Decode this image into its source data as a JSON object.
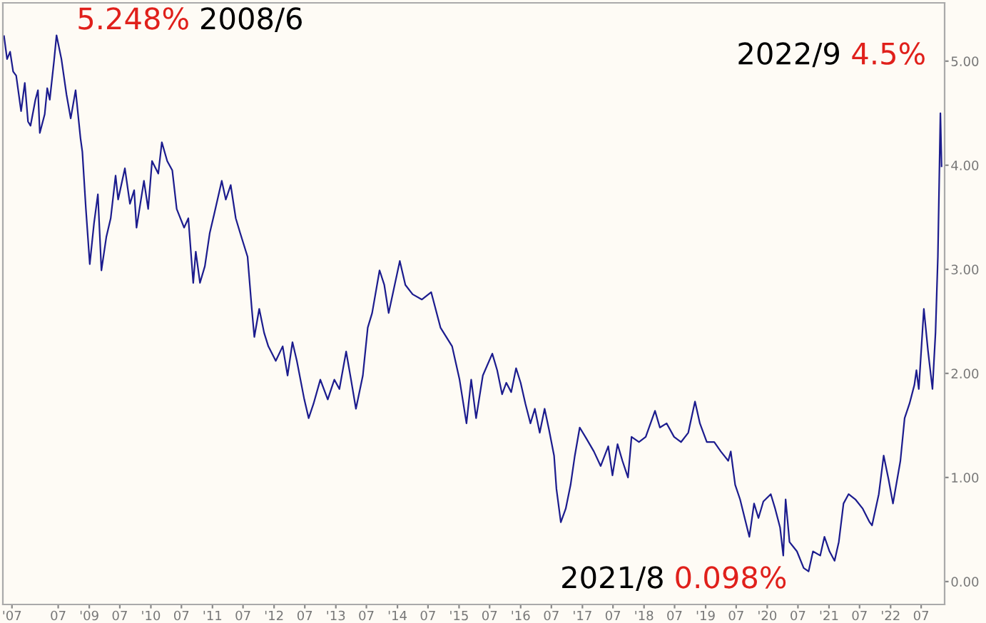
{
  "chart_data": {
    "type": "line",
    "x": [
      "2007-08-15",
      "2007-09-02",
      "2007-09-20",
      "2007-10-08",
      "2007-10-26",
      "2007-11-24",
      "2007-12-16",
      "2008-01-04",
      "2008-01-19",
      "2008-02-17",
      "2008-03-03",
      "2008-03-14",
      "2008-04-12",
      "2008-04-27",
      "2008-05-12",
      "2008-06-06",
      "2008-06-21",
      "2008-07-20",
      "2008-08-19",
      "2008-09-13",
      "2008-10-12",
      "2008-11-10",
      "2008-11-21",
      "2008-12-12",
      "2009-01-04",
      "2009-01-29",
      "2009-02-21",
      "2009-03-14",
      "2009-04-12",
      "2009-05-08",
      "2009-06-06",
      "2009-06-21",
      "2009-07-31",
      "2009-08-30",
      "2009-09-24",
      "2009-10-08",
      "2009-11-21",
      "2009-12-16",
      "2010-01-08",
      "2010-02-14",
      "2010-03-07",
      "2010-04-08",
      "2010-05-08",
      "2010-06-03",
      "2010-07-17",
      "2010-08-11",
      "2010-09-09",
      "2010-09-24",
      "2010-10-19",
      "2010-11-17",
      "2010-12-16",
      "2011-01-11",
      "2011-02-25",
      "2011-03-21",
      "2011-04-19",
      "2011-05-19",
      "2011-06-14",
      "2011-07-28",
      "2011-08-22",
      "2011-09-06",
      "2011-10-05",
      "2011-11-03",
      "2011-11-28",
      "2012-01-11",
      "2012-02-21",
      "2012-03-21",
      "2012-04-19",
      "2012-05-15",
      "2012-06-28",
      "2012-07-24",
      "2012-08-22",
      "2012-10-01",
      "2012-11-14",
      "2012-12-23",
      "2013-01-22",
      "2013-03-03",
      "2013-04-01",
      "2013-04-30",
      "2013-06-10",
      "2013-07-09",
      "2013-08-04",
      "2013-09-17",
      "2013-10-15",
      "2013-11-10",
      "2013-12-09",
      "2014-01-15",
      "2014-02-17",
      "2014-04-01",
      "2014-05-26",
      "2014-07-20",
      "2014-09-13",
      "2014-11-21",
      "2015-01-04",
      "2015-02-14",
      "2015-03-14",
      "2015-04-12",
      "2015-05-22",
      "2015-07-17",
      "2015-08-15",
      "2015-09-13",
      "2015-10-08",
      "2015-11-06",
      "2015-12-05",
      "2016-01-01",
      "2016-01-29",
      "2016-02-28",
      "2016-03-25",
      "2016-04-23",
      "2016-05-22",
      "2016-06-17",
      "2016-07-17",
      "2016-07-31",
      "2016-08-26",
      "2016-09-24",
      "2016-10-23",
      "2016-11-17",
      "2016-12-16",
      "2017-01-26",
      "2017-03-10",
      "2017-04-19",
      "2017-06-03",
      "2017-06-28",
      "2017-07-28",
      "2017-08-26",
      "2017-09-28",
      "2017-10-19",
      "2017-12-02",
      "2018-01-11",
      "2018-03-07",
      "2018-04-05",
      "2018-05-15",
      "2018-06-28",
      "2018-08-08",
      "2018-09-20",
      "2018-10-30",
      "2018-11-28",
      "2019-01-08",
      "2019-02-21",
      "2019-04-01",
      "2019-05-15",
      "2019-05-30",
      "2019-06-25",
      "2019-07-24",
      "2019-09-17",
      "2019-10-15",
      "2019-11-10",
      "2019-12-09",
      "2020-01-22",
      "2020-02-17",
      "2020-03-17",
      "2020-04-05",
      "2020-04-19",
      "2020-05-12",
      "2020-06-25",
      "2020-08-04",
      "2020-09-02",
      "2020-09-28",
      "2020-11-10",
      "2020-12-05",
      "2021-01-04",
      "2021-02-03",
      "2021-02-28",
      "2021-03-28",
      "2021-04-27",
      "2021-06-06",
      "2021-07-20",
      "2021-08-30",
      "2021-09-13",
      "2021-10-23",
      "2021-11-21",
      "2021-12-20",
      "2022-01-15",
      "2022-02-28",
      "2022-03-25",
      "2022-04-23",
      "2022-05-22",
      "2022-06-03",
      "2022-06-17",
      "2022-07-17",
      "2022-08-11",
      "2022-09-06",
      "2022-09-24",
      "2022-10-08",
      "2022-10-23",
      "2022-10-30"
    ],
    "values": [
      5.24,
      5.02,
      5.09,
      4.9,
      4.86,
      4.52,
      4.79,
      4.42,
      4.38,
      4.63,
      4.72,
      4.31,
      4.49,
      4.74,
      4.63,
      5.0,
      5.248,
      5.02,
      4.68,
      4.45,
      4.72,
      4.26,
      4.13,
      3.58,
      3.05,
      3.44,
      3.72,
      2.99,
      3.31,
      3.49,
      3.9,
      3.67,
      3.97,
      3.63,
      3.76,
      3.4,
      3.85,
      3.58,
      4.04,
      3.92,
      4.22,
      4.04,
      3.95,
      3.58,
      3.4,
      3.49,
      2.87,
      3.17,
      2.87,
      3.03,
      3.35,
      3.53,
      3.85,
      3.67,
      3.81,
      3.49,
      3.35,
      3.12,
      2.62,
      2.35,
      2.62,
      2.39,
      2.26,
      2.12,
      2.26,
      1.98,
      2.3,
      2.12,
      1.75,
      1.57,
      1.71,
      1.94,
      1.75,
      1.94,
      1.85,
      2.21,
      1.94,
      1.66,
      1.98,
      2.44,
      2.58,
      2.99,
      2.85,
      2.58,
      2.8,
      3.08,
      2.85,
      2.76,
      2.71,
      2.78,
      2.44,
      2.26,
      1.94,
      1.52,
      1.94,
      1.57,
      1.98,
      2.19,
      2.03,
      1.8,
      1.91,
      1.82,
      2.05,
      1.91,
      1.71,
      1.52,
      1.66,
      1.43,
      1.66,
      1.46,
      1.21,
      0.89,
      0.57,
      0.7,
      0.93,
      1.21,
      1.48,
      1.37,
      1.25,
      1.11,
      1.3,
      1.02,
      1.32,
      1.16,
      1.0,
      1.39,
      1.34,
      1.39,
      1.64,
      1.48,
      1.52,
      1.39,
      1.34,
      1.43,
      1.73,
      1.52,
      1.34,
      1.34,
      1.25,
      1.16,
      1.25,
      0.93,
      0.79,
      0.43,
      0.75,
      0.61,
      0.77,
      0.84,
      0.7,
      0.52,
      0.25,
      0.79,
      0.38,
      0.29,
      0.13,
      0.098,
      0.29,
      0.25,
      0.43,
      0.29,
      0.2,
      0.38,
      0.75,
      0.84,
      0.79,
      0.7,
      0.57,
      0.54,
      0.84,
      1.21,
      0.98,
      0.75,
      1.16,
      1.57,
      1.71,
      1.89,
      2.03,
      1.85,
      2.62,
      2.21,
      1.85,
      2.39,
      3.12,
      4.5,
      3.99
    ],
    "color": "#1c1c8e",
    "xlim": [
      "2007-08-08",
      "2022-11-17"
    ],
    "ylim": [
      -0.22,
      5.56
    ],
    "xticks": [
      {
        "value": "2007-10",
        "label": "'07"
      },
      {
        "value": "2008-07",
        "label": "07"
      },
      {
        "value": "2009",
        "label": "'09"
      },
      {
        "value": "2009-07",
        "label": "07"
      },
      {
        "value": "2010",
        "label": "'10"
      },
      {
        "value": "2010-07",
        "label": "07"
      },
      {
        "value": "2011",
        "label": "'11"
      },
      {
        "value": "2011-07",
        "label": "07"
      },
      {
        "value": "2012",
        "label": "'12"
      },
      {
        "value": "2012-07",
        "label": "07"
      },
      {
        "value": "2013",
        "label": "'13"
      },
      {
        "value": "2013-07",
        "label": "07"
      },
      {
        "value": "2014",
        "label": "'14"
      },
      {
        "value": "2014-07",
        "label": "07"
      },
      {
        "value": "2015",
        "label": "'15"
      },
      {
        "value": "2015-07",
        "label": "07"
      },
      {
        "value": "2016",
        "label": "'16"
      },
      {
        "value": "2016-07",
        "label": "07"
      },
      {
        "value": "2017",
        "label": "'17"
      },
      {
        "value": "2017-07",
        "label": "07"
      },
      {
        "value": "2018",
        "label": "'18"
      },
      {
        "value": "2018-07",
        "label": "07"
      },
      {
        "value": "2019",
        "label": "'19"
      },
      {
        "value": "2019-07",
        "label": "07"
      },
      {
        "value": "2020",
        "label": "'20"
      },
      {
        "value": "2020-07",
        "label": "07"
      },
      {
        "value": "2021",
        "label": "'21"
      },
      {
        "value": "2021-07",
        "label": "07"
      },
      {
        "value": "2022",
        "label": "'22"
      },
      {
        "value": "2022-07",
        "label": "07"
      }
    ],
    "yticks": [
      {
        "value": 0,
        "label": "0.00"
      },
      {
        "value": 1,
        "label": "1.00"
      },
      {
        "value": 2,
        "label": "2.00"
      },
      {
        "value": 3,
        "label": "3.00"
      },
      {
        "value": 4,
        "label": "4.00"
      },
      {
        "value": 5,
        "label": "5.00"
      }
    ],
    "grid": false,
    "legend": false,
    "marker": "none",
    "line_style": "solid",
    "annotations": [
      {
        "text": "5.248% 2008/6",
        "x": "2008-06-21",
        "y": 5.248
      },
      {
        "text": "2022/9 4.5%",
        "x": "2022-10-23",
        "y": 4.5
      },
      {
        "text": "2021/8 0.098%",
        "x": "2020-09-02",
        "y": 0.098
      }
    ]
  }
}
